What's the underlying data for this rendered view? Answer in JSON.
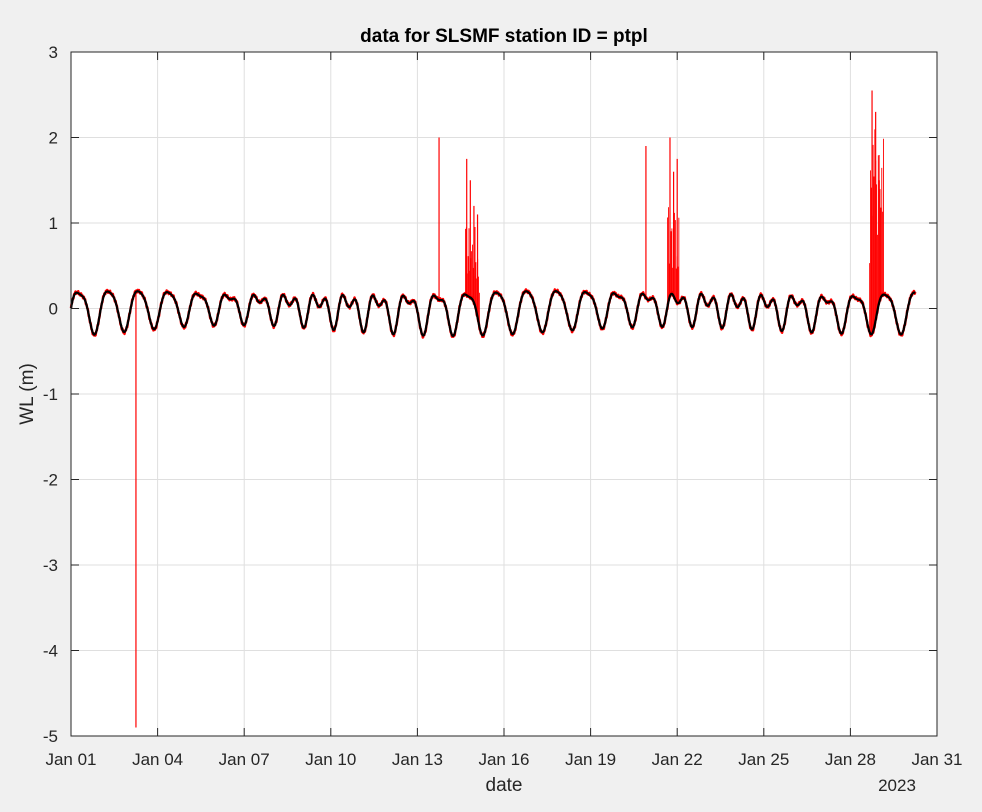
{
  "chart_data": {
    "type": "line",
    "title": "data for SLSMF station ID = ptpl",
    "xlabel": "date",
    "ylabel": "WL (m)",
    "year_label": "2023",
    "xlim": [
      "2023-01-01",
      "2023-01-31"
    ],
    "ylim": [
      -5,
      3
    ],
    "grid": true,
    "x_ticks": [
      "2023-01-01",
      "2023-01-04",
      "2023-01-07",
      "2023-01-10",
      "2023-01-13",
      "2023-01-16",
      "2023-01-19",
      "2023-01-22",
      "2023-01-25",
      "2023-01-28",
      "2023-01-31"
    ],
    "x_tick_labels": [
      "Jan 01",
      "Jan 04",
      "Jan 07",
      "Jan 10",
      "Jan 13",
      "Jan 16",
      "Jan 19",
      "Jan 22",
      "Jan 25",
      "Jan 28",
      "Jan 31"
    ],
    "y_ticks": [
      -5,
      -4,
      -3,
      -2,
      -1,
      0,
      1,
      2,
      3
    ],
    "y_tick_labels": [
      "-5",
      "-4",
      "-3",
      "-2",
      "-1",
      "0",
      "1",
      "2",
      "3"
    ],
    "data_end": "2023-01-30 06:00",
    "series": [
      {
        "color": "#ff0000",
        "description_values": {
          "spikes": [
            {
              "t": "2023-01-03 06:00",
              "y": -4.9
            },
            {
              "t": "2023-01-13 18:00",
              "y": 2.0
            },
            {
              "t": "2023-01-14 17:00",
              "y": 1.75
            },
            {
              "t": "2023-01-14 20:00",
              "y": 1.5
            },
            {
              "t": "2023-01-14 23:00",
              "y": 1.2
            },
            {
              "t": "2023-01-15 02:00",
              "y": 1.1
            },
            {
              "t": "2023-01-20 22:00",
              "y": 1.9
            },
            {
              "t": "2023-01-21 18:00",
              "y": 2.0
            },
            {
              "t": "2023-01-21 21:00",
              "y": 1.6
            },
            {
              "t": "2023-01-22 00:00",
              "y": 1.75
            },
            {
              "t": "2023-01-28 18:00",
              "y": 2.55
            },
            {
              "t": "2023-01-28 21:00",
              "y": 2.3
            },
            {
              "t": "2023-01-29 00:00",
              "y": 1.5
            }
          ]
        }
      },
      {
        "color": "#000000"
      }
    ]
  }
}
